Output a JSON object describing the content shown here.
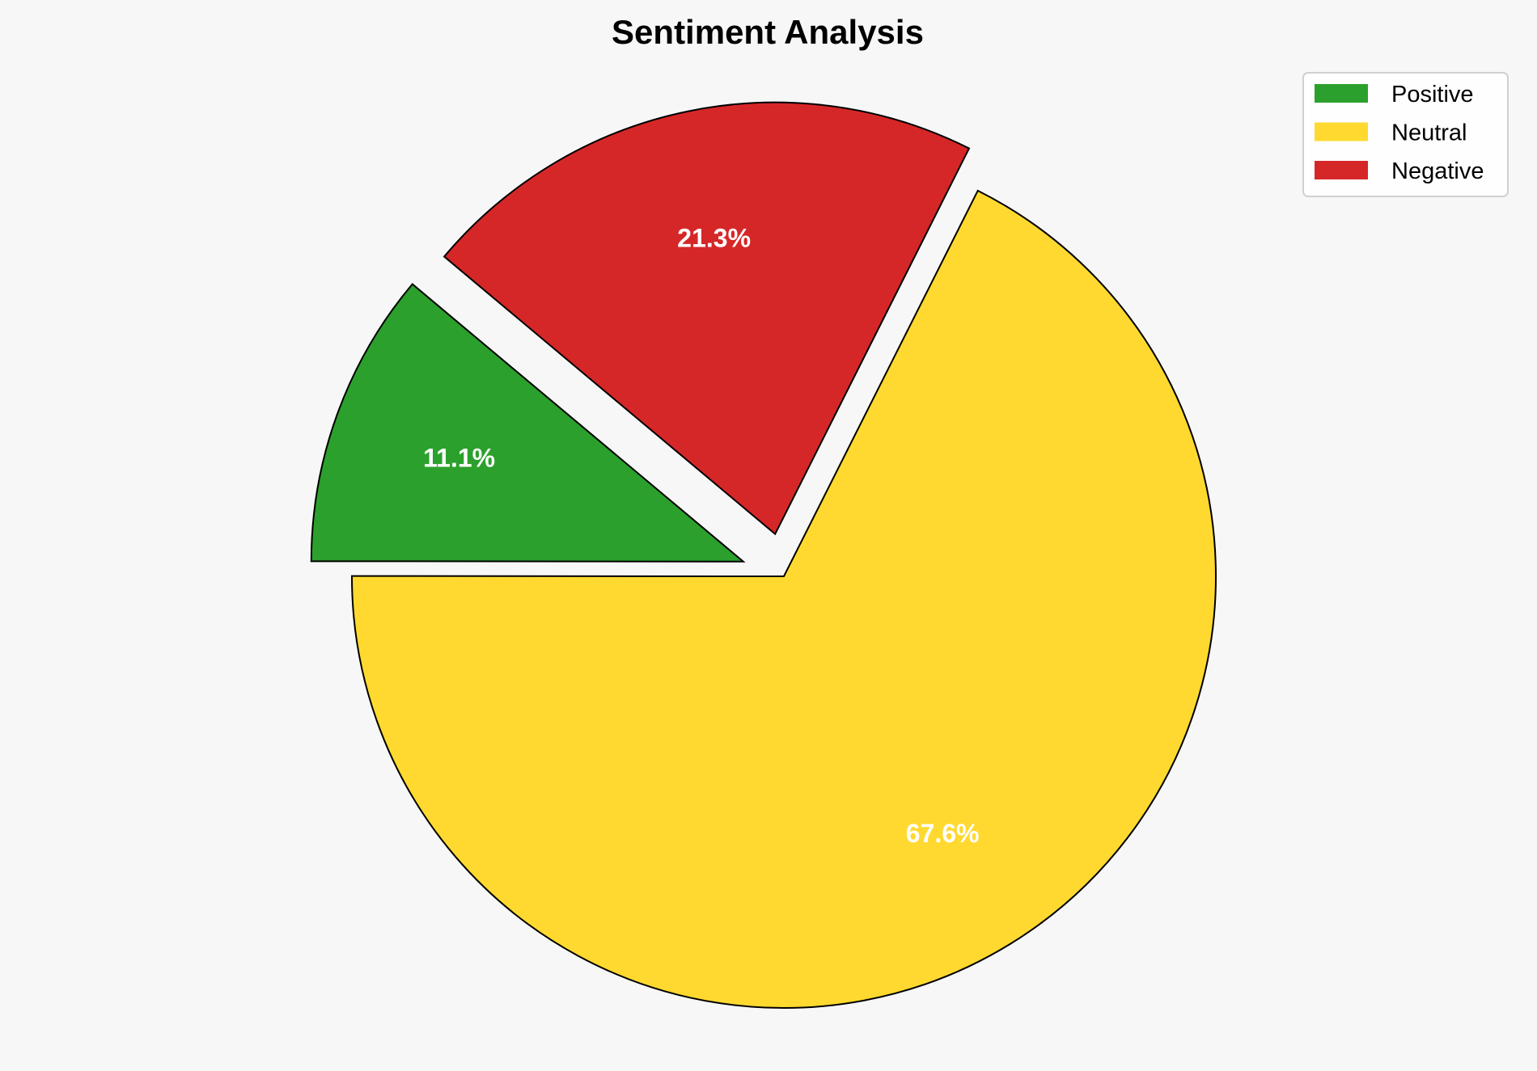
{
  "chart_data": {
    "type": "pie",
    "title": "Sentiment Analysis",
    "categories": [
      "Positive",
      "Neutral",
      "Negative"
    ],
    "values": [
      11.1,
      67.6,
      21.3
    ],
    "labels": [
      "11.1%",
      "67.6%",
      "21.3%"
    ],
    "colors": [
      "#2ca02c",
      "#ffd92f",
      "#d62728"
    ],
    "explode": [
      0.1,
      0,
      0.1
    ],
    "start_angle": 140,
    "direction": "counterclockwise",
    "edge_color": "#000000",
    "legend_position": "top-right"
  }
}
